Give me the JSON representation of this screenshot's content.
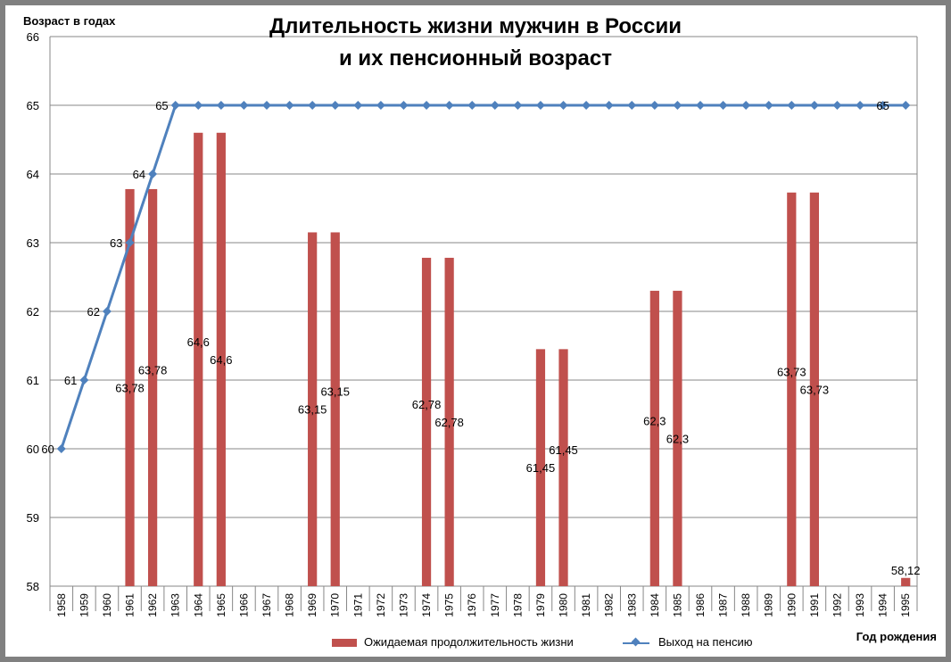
{
  "chart_data": {
    "type": "bar+line",
    "title_line1": "Длительность жизни мужчин в России",
    "title_line2": "и их пенсионный возраст",
    "ylabel": "Возраст  в годах",
    "xlabel": "Год рождения",
    "ylim": [
      58,
      66
    ],
    "yticks": [
      "58",
      "59",
      "60",
      "61",
      "62",
      "63",
      "64",
      "65",
      "66"
    ],
    "grid": true,
    "legend_position": "bottom",
    "categories": [
      "1958",
      "1959",
      "1960",
      "1961",
      "1962",
      "1963",
      "1964",
      "1965",
      "1966",
      "1967",
      "1968",
      "1969",
      "1970",
      "1971",
      "1972",
      "1973",
      "1974",
      "1975",
      "1976",
      "1977",
      "1978",
      "1979",
      "1980",
      "1981",
      "1982",
      "1983",
      "1984",
      "1985",
      "1986",
      "1987",
      "1988",
      "1989",
      "1990",
      "1991",
      "1992",
      "1993",
      "1994",
      "1995"
    ],
    "series": [
      {
        "name": "Ожидаемая  продолжительность  жизни",
        "type": "bar",
        "color": "#C0504D",
        "values": [
          null,
          null,
          null,
          63.78,
          63.78,
          null,
          64.6,
          64.6,
          null,
          null,
          null,
          63.15,
          63.15,
          null,
          null,
          null,
          62.78,
          62.78,
          null,
          null,
          null,
          61.45,
          61.45,
          null,
          null,
          null,
          62.3,
          62.3,
          null,
          null,
          null,
          null,
          63.73,
          63.73,
          null,
          null,
          null,
          58.12
        ],
        "labels": [
          null,
          null,
          null,
          "63,78",
          "63,78",
          null,
          "64,6",
          "64,6",
          null,
          null,
          null,
          "63,15",
          "63,15",
          null,
          null,
          null,
          "62,78",
          "62,78",
          null,
          null,
          null,
          "61,45",
          "61,45",
          null,
          null,
          null,
          "62,3",
          "62,3",
          null,
          null,
          null,
          null,
          "63,73",
          "63,73",
          null,
          null,
          null,
          "58,12"
        ]
      },
      {
        "name": "Выход на пенсию",
        "type": "line",
        "color": "#4F81BD",
        "values": [
          60,
          61,
          62,
          63,
          64,
          65,
          65,
          65,
          65,
          65,
          65,
          65,
          65,
          65,
          65,
          65,
          65,
          65,
          65,
          65,
          65,
          65,
          65,
          65,
          65,
          65,
          65,
          65,
          65,
          65,
          65,
          65,
          65,
          65,
          65,
          65,
          65,
          65
        ],
        "labels": [
          "60",
          "61",
          "62",
          "63",
          "64",
          "65",
          null,
          null,
          null,
          null,
          null,
          null,
          null,
          null,
          null,
          null,
          null,
          null,
          null,
          null,
          null,
          null,
          null,
          null,
          null,
          null,
          null,
          null,
          null,
          null,
          null,
          null,
          null,
          null,
          null,
          null,
          "65",
          null
        ]
      }
    ]
  }
}
